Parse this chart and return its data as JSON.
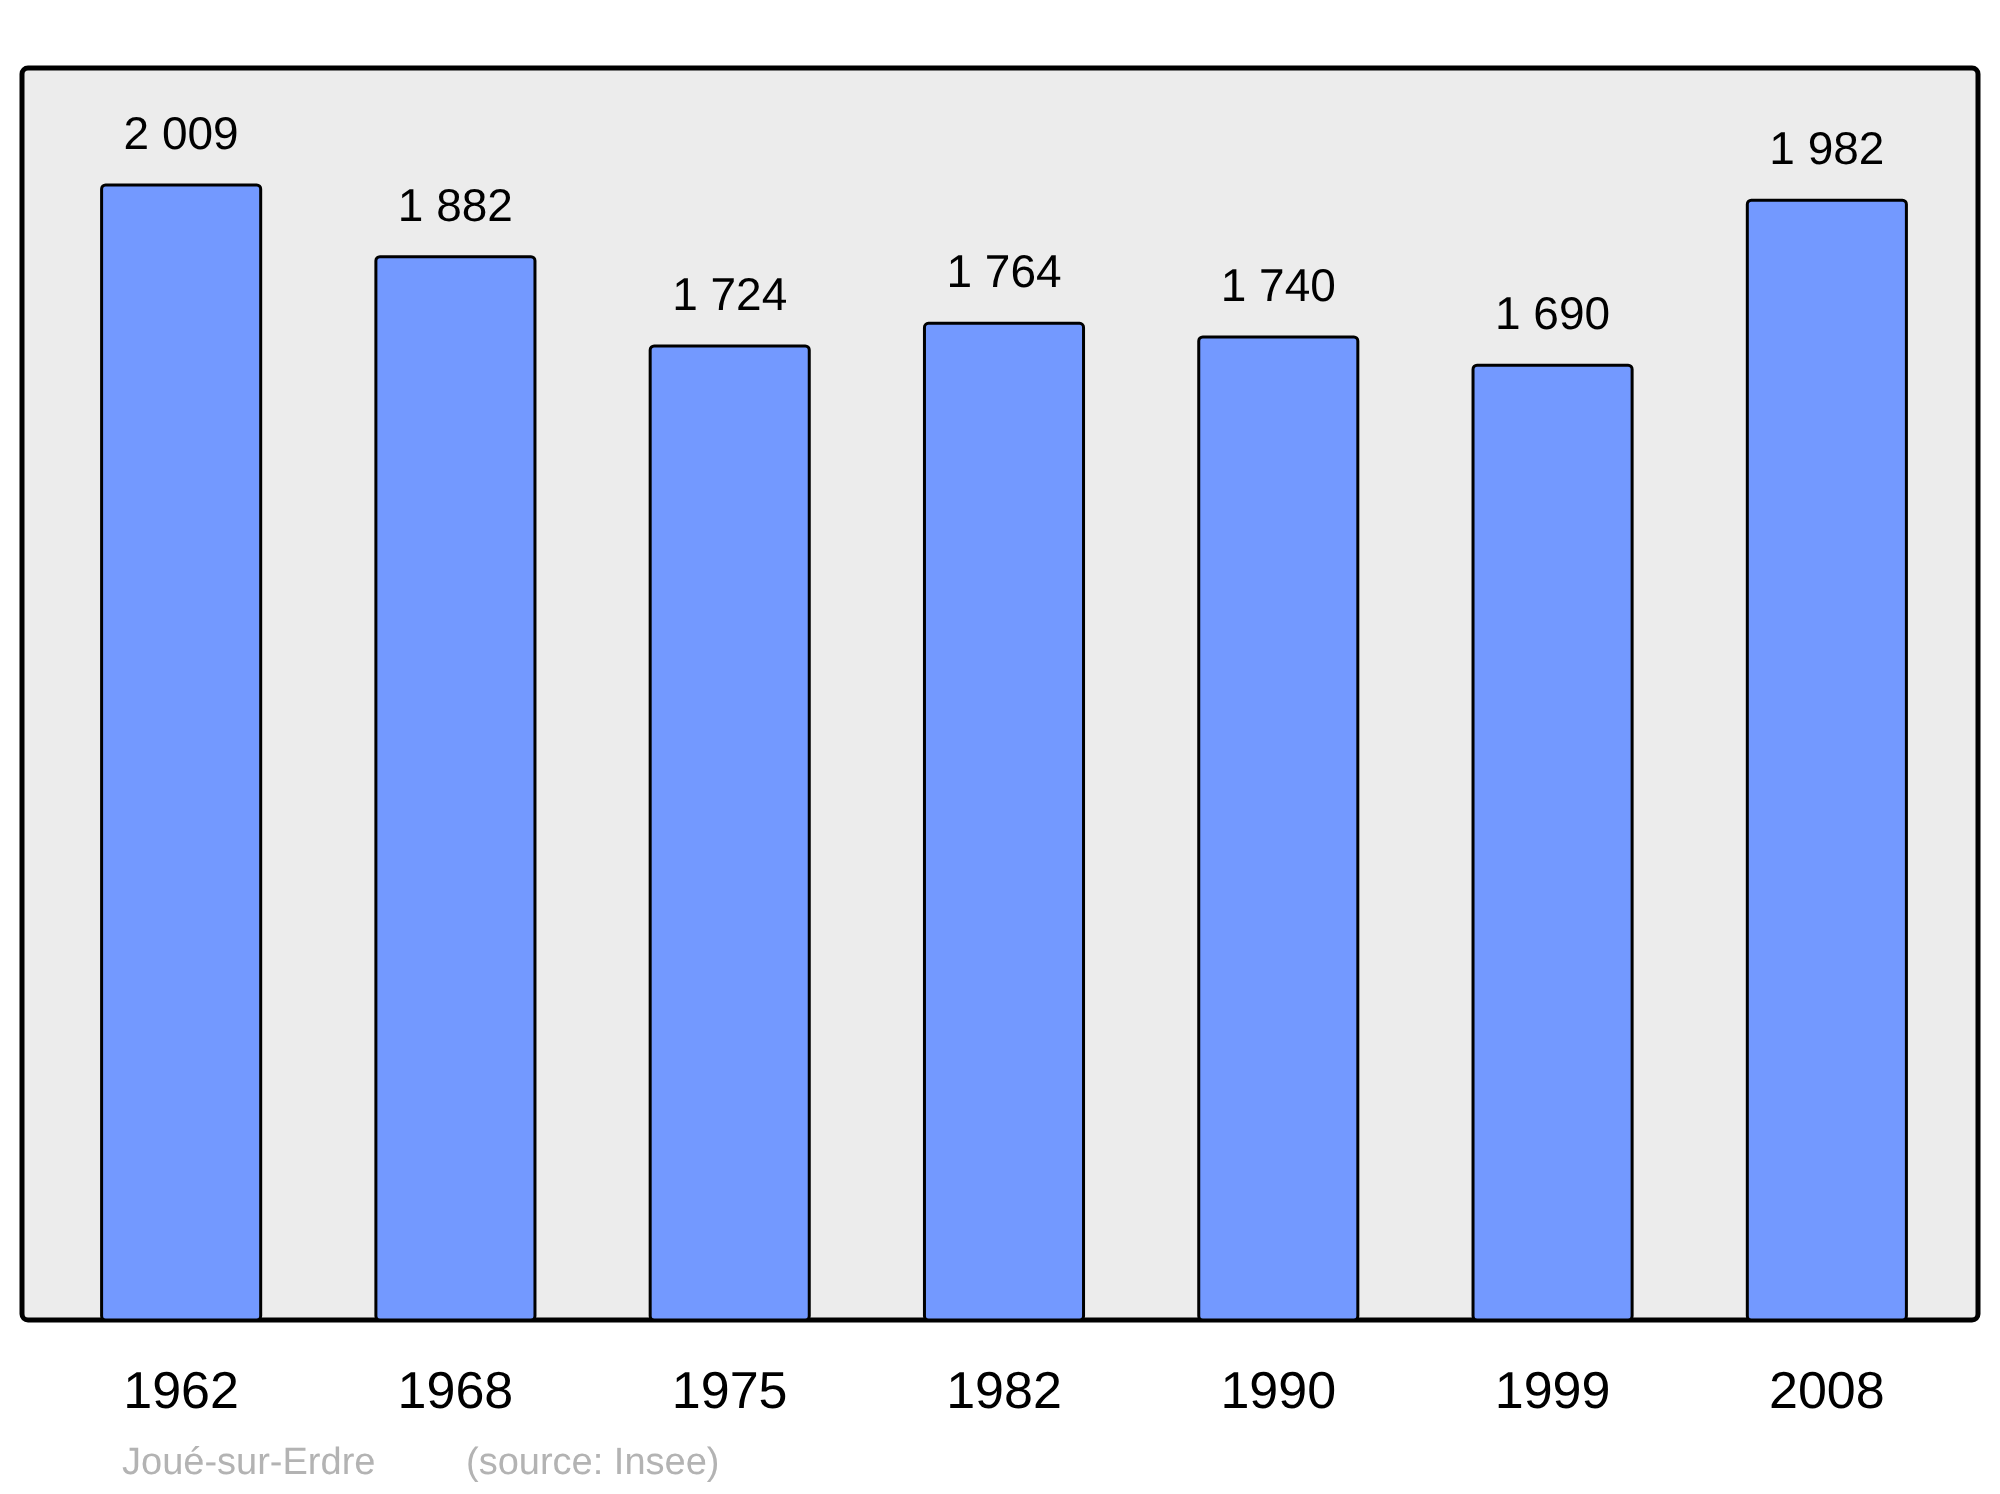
{
  "chart_data": {
    "type": "bar",
    "categories": [
      "1962",
      "1968",
      "1975",
      "1982",
      "1990",
      "1999",
      "2008"
    ],
    "values": [
      2009,
      1882,
      1724,
      1764,
      1740,
      1690,
      1982
    ],
    "value_labels": [
      "2 009",
      "1 882",
      "1 724",
      "1 764",
      "1 740",
      "1 690",
      "1 982"
    ],
    "color": "#7399ff",
    "annotations": [
      "Joué-sur-Erdre",
      "(source: Insee)"
    ]
  }
}
